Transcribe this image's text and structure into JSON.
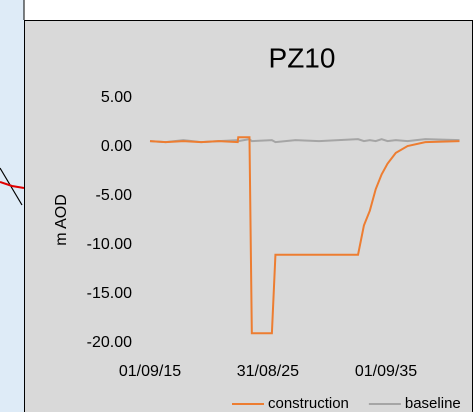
{
  "chart_data": {
    "type": "line",
    "title": "PZ10",
    "y_label": "m AOD",
    "x": [
      2015.67,
      2017,
      2018.5,
      2020,
      2021.5,
      2023.1,
      2023.15,
      2024.1,
      2024.3,
      2026.0,
      2026.3,
      2028,
      2030,
      2033.3,
      2033.8,
      2034.3,
      2034.8,
      2035.3,
      2035.8,
      2036.5,
      2037.5,
      2039,
      2041.9
    ],
    "series": [
      {
        "name": "construction",
        "color": "#ed7d31",
        "values": [
          0.6,
          0.5,
          0.6,
          0.5,
          0.6,
          0.5,
          1.0,
          1.0,
          -19,
          -19,
          -11,
          -11,
          -11,
          -11,
          -8,
          -6.5,
          -4.3,
          -2.8,
          -1.7,
          -0.6,
          0.1,
          0.5,
          0.6
        ]
      },
      {
        "name": "baseline",
        "color": "#a5a5a5",
        "values": [
          0.6,
          0.5,
          0.7,
          0.5,
          0.6,
          0.7,
          0.6,
          0.8,
          0.6,
          0.7,
          0.5,
          0.7,
          0.6,
          0.8,
          0.6,
          0.7,
          0.6,
          0.8,
          0.6,
          0.7,
          0.6,
          0.8,
          0.7
        ]
      }
    ],
    "xlim": [
      2015.67,
      2041.9
    ],
    "xticks": [
      {
        "value": 2015.67,
        "label": "01/09/15"
      },
      {
        "value": 2025.66,
        "label": "31/08/25"
      },
      {
        "value": 2035.67,
        "label": "01/09/35"
      }
    ],
    "ylim": [
      -20,
      5
    ],
    "yticks": [
      {
        "value": 5,
        "label": "5.00"
      },
      {
        "value": 0,
        "label": "0.00"
      },
      {
        "value": -5,
        "label": "-5.00"
      },
      {
        "value": -10,
        "label": "-10.00"
      },
      {
        "value": -15,
        "label": "-15.00"
      },
      {
        "value": -20,
        "label": "-20.00"
      }
    ],
    "grid": false,
    "legend": "bottom"
  }
}
